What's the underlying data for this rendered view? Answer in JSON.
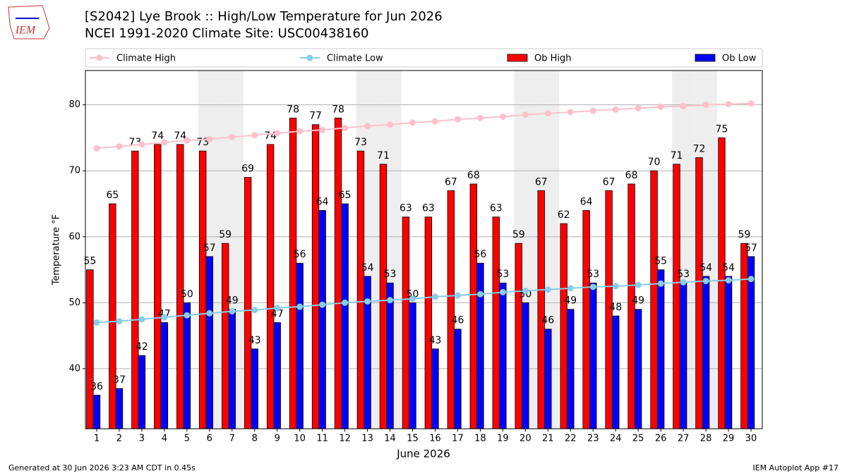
{
  "chart_data": {
    "type": "bar",
    "title": "[S2042] Lye Brook :: High/Low Temperature for Jun 2026",
    "subtitle": "NCEI 1991-2020 Climate Site: USC00438160",
    "logo": "IEM",
    "xlabel": "June 2026",
    "ylabel": "Temperature °F",
    "footer_left": "Generated at 30 Jun 2026 3:23 AM CDT in 0.45s",
    "footer_right": "IEM Autoplot App #17",
    "x": [
      1,
      2,
      3,
      4,
      5,
      6,
      7,
      8,
      9,
      10,
      11,
      12,
      13,
      14,
      15,
      16,
      17,
      18,
      19,
      20,
      21,
      22,
      23,
      24,
      25,
      26,
      27,
      28,
      29,
      30
    ],
    "xlim": [
      0.5,
      30.5
    ],
    "xticks": [
      1,
      2,
      3,
      4,
      5,
      6,
      7,
      8,
      9,
      10,
      11,
      12,
      13,
      14,
      15,
      16,
      17,
      18,
      19,
      20,
      21,
      22,
      23,
      24,
      25,
      26,
      27,
      28,
      29,
      30
    ],
    "ylim": [
      30.9,
      85.2
    ],
    "yticks": [
      40,
      50,
      60,
      70,
      80
    ],
    "grid": true,
    "shaded_days": [
      6,
      7,
      13,
      14,
      20,
      21,
      27,
      28
    ],
    "series": [
      {
        "name": "Climate High",
        "style": "line",
        "color": "#ffc0cb",
        "values": [
          73.4,
          73.7,
          74.0,
          74.3,
          74.6,
          74.8,
          75.1,
          75.4,
          75.7,
          76.0,
          76.2,
          76.5,
          76.8,
          77.0,
          77.3,
          77.5,
          77.8,
          78.0,
          78.2,
          78.5,
          78.7,
          78.9,
          79.1,
          79.3,
          79.5,
          79.7,
          79.8,
          80.0,
          80.1,
          80.2
        ]
      },
      {
        "name": "Climate Low",
        "style": "line",
        "color": "#87ceeb",
        "values": [
          47.0,
          47.2,
          47.5,
          47.8,
          48.1,
          48.4,
          48.7,
          48.9,
          49.2,
          49.4,
          49.7,
          50.0,
          50.2,
          50.4,
          50.6,
          50.9,
          51.1,
          51.3,
          51.6,
          51.8,
          52.0,
          52.2,
          52.4,
          52.5,
          52.7,
          52.9,
          53.1,
          53.3,
          53.4,
          53.6
        ]
      },
      {
        "name": "Ob High",
        "style": "bar",
        "color": "#ff0000",
        "values": [
          55,
          65,
          73,
          74,
          74,
          73,
          59,
          69,
          74,
          78,
          77,
          78,
          73,
          71,
          63,
          63,
          67,
          68,
          63,
          59,
          67,
          62,
          64,
          67,
          68,
          70,
          71,
          72,
          75,
          59
        ]
      },
      {
        "name": "Ob Low",
        "style": "bar",
        "color": "#0000ff",
        "values": [
          36,
          37,
          42,
          47,
          50,
          57,
          49,
          43,
          47,
          56,
          64,
          65,
          54,
          53,
          50,
          43,
          46,
          56,
          53,
          50,
          46,
          49,
          53,
          48,
          49,
          55,
          53,
          54,
          54,
          57
        ]
      }
    ]
  }
}
